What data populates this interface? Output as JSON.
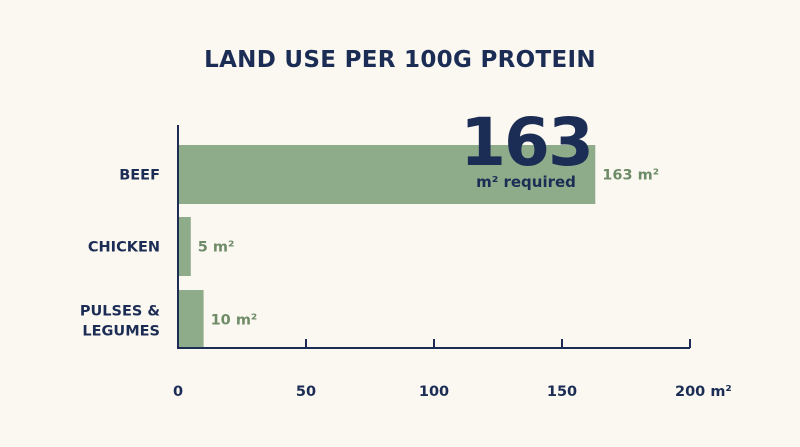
{
  "chart_data": {
    "type": "bar",
    "orientation": "horizontal",
    "title": "LAND USE PER 100G PROTEIN",
    "categories": [
      "BEEF",
      "CHICKEN",
      "PULSES & LEGUMES"
    ],
    "values": [
      163,
      5,
      10
    ],
    "value_labels": [
      "163 m²",
      "5 m²",
      "10 m²"
    ],
    "xlim": [
      0,
      200
    ],
    "xticks": [
      0,
      50,
      100,
      150,
      200
    ],
    "xtick_labels": [
      "0",
      "50",
      "100",
      "150",
      "200 m²"
    ],
    "grid": false,
    "highlight": {
      "number": "163",
      "caption": "m² required"
    },
    "colors": {
      "bar": "#8fac8a",
      "text": "#1c2d55",
      "value_text": "#6f8c68",
      "background": "#fbf8f1"
    }
  }
}
